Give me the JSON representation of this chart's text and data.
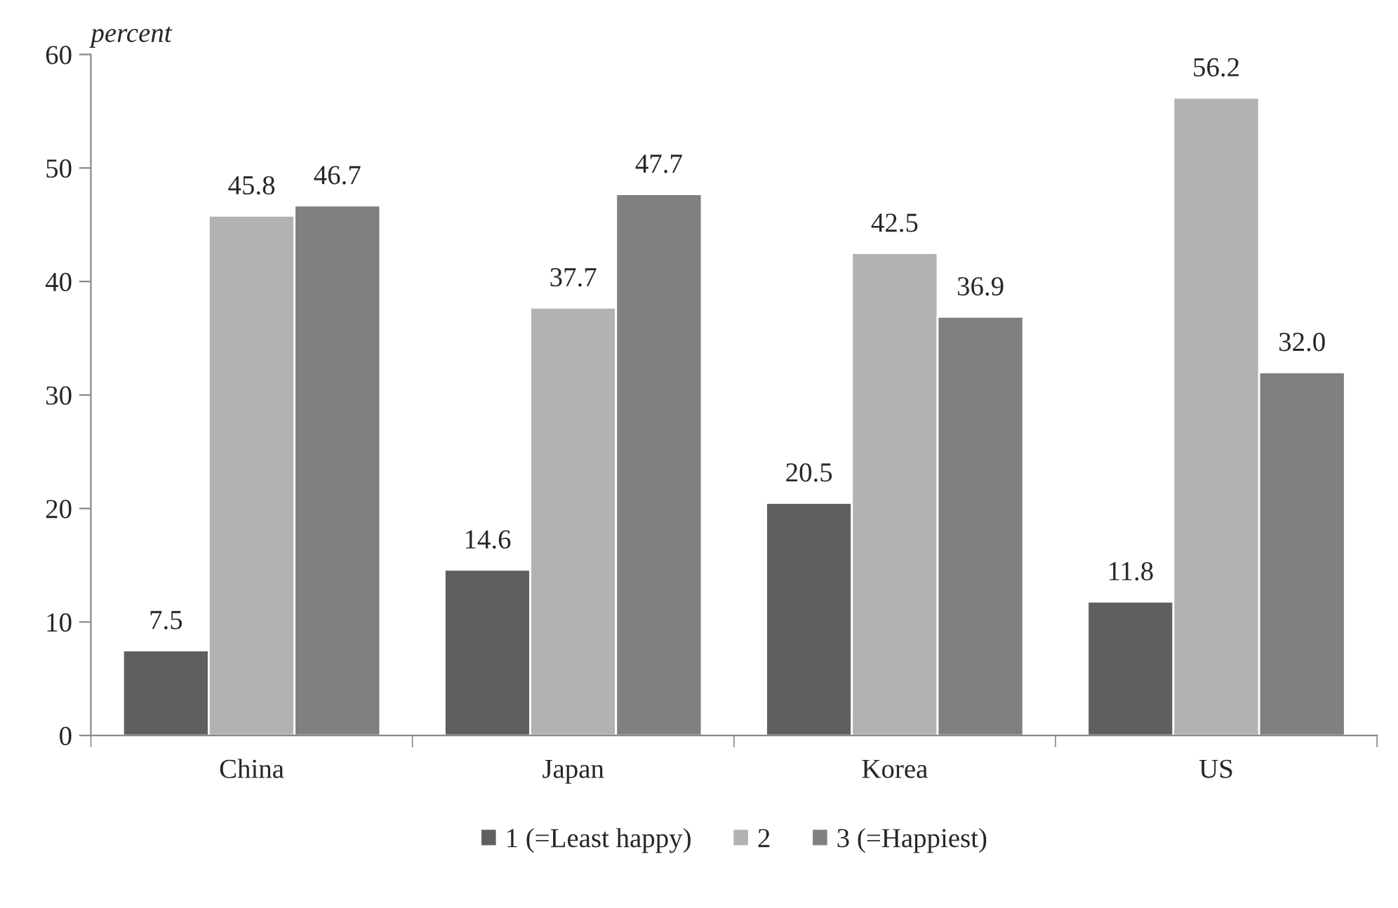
{
  "chart_data": {
    "type": "bar",
    "ylabel": "percent",
    "categories": [
      "China",
      "Japan",
      "Korea",
      "US"
    ],
    "series": [
      {
        "name": "1 (=Least happy)",
        "color": "#5f5f5f",
        "values": [
          7.5,
          14.6,
          20.5,
          11.8
        ],
        "value_labels": [
          "7.5",
          "14.6",
          "20.5",
          "11.8"
        ]
      },
      {
        "name": "2",
        "color": "#b2b2b2",
        "values": [
          45.8,
          37.7,
          42.5,
          56.2
        ],
        "value_labels": [
          "45.8",
          "37.7",
          "42.5",
          "56.2"
        ]
      },
      {
        "name": "3 (=Happiest)",
        "color": "#808080",
        "values": [
          46.7,
          47.7,
          36.9,
          32.0
        ],
        "value_labels": [
          "46.7",
          "47.7",
          "36.9",
          "32.0"
        ]
      }
    ],
    "ylim": [
      0,
      60
    ],
    "yticks": [
      0,
      10,
      20,
      30,
      40,
      50,
      60
    ],
    "grid": false,
    "legend": "bottom"
  }
}
